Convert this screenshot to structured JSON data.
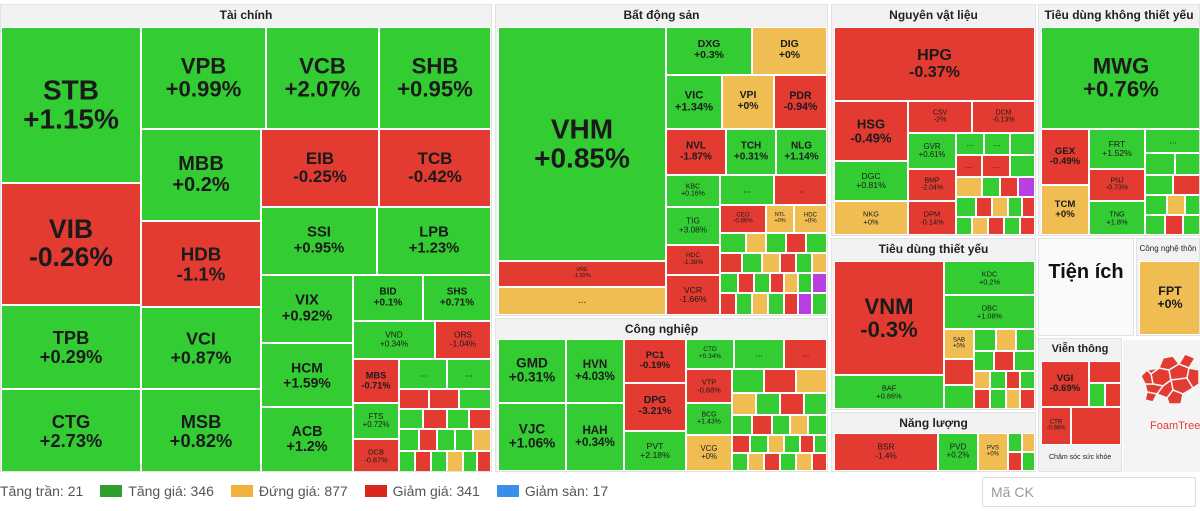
{
  "sectors": [
    {
      "name": "Tài chính",
      "tiles": [
        {
          "symbol": "STB",
          "change": "+1.15%",
          "status": "up"
        },
        {
          "symbol": "VIB",
          "change": "-0.26%",
          "status": "down"
        },
        {
          "symbol": "TPB",
          "change": "+0.29%",
          "status": "up"
        },
        {
          "symbol": "CTG",
          "change": "+2.73%",
          "status": "up"
        },
        {
          "symbol": "VPB",
          "change": "+0.99%",
          "status": "up"
        },
        {
          "symbol": "VCB",
          "change": "+2.07%",
          "status": "up"
        },
        {
          "symbol": "SHB",
          "change": "+0.95%",
          "status": "up"
        },
        {
          "symbol": "MBB",
          "change": "+0.2%",
          "status": "up"
        },
        {
          "symbol": "EIB",
          "change": "-0.25%",
          "status": "down"
        },
        {
          "symbol": "TCB",
          "change": "-0.42%",
          "status": "down"
        },
        {
          "symbol": "HDB",
          "change": "-1.1%",
          "status": "down"
        },
        {
          "symbol": "SSI",
          "change": "+0.95%",
          "status": "up"
        },
        {
          "symbol": "LPB",
          "change": "+1.23%",
          "status": "up"
        },
        {
          "symbol": "VCI",
          "change": "+0.87%",
          "status": "up"
        },
        {
          "symbol": "VIX",
          "change": "+0.92%",
          "status": "up"
        },
        {
          "symbol": "BID",
          "change": "+0.1%",
          "status": "up"
        },
        {
          "symbol": "SHS",
          "change": "+0.71%",
          "status": "up"
        },
        {
          "symbol": "VND",
          "change": "+0.34%",
          "status": "up"
        },
        {
          "symbol": "ORS",
          "change": "-1.04%",
          "status": "down"
        },
        {
          "symbol": "MSB",
          "change": "+0.82%",
          "status": "up"
        },
        {
          "symbol": "HCM",
          "change": "+1.59%",
          "status": "up"
        },
        {
          "symbol": "MBS",
          "change": "-0.71%",
          "status": "down"
        },
        {
          "symbol": "FTS",
          "change": "+0.72%",
          "status": "up"
        },
        {
          "symbol": "ACB",
          "change": "+1.2%",
          "status": "up"
        },
        {
          "symbol": "OCB",
          "change": "-0.87%",
          "status": "down"
        }
      ]
    },
    {
      "name": "Bất động sản",
      "tiles": [
        {
          "symbol": "VHM",
          "change": "+0.85%",
          "status": "up"
        },
        {
          "symbol": "VRE",
          "change": "-1.92%",
          "status": "down"
        },
        {
          "symbol": "DXG",
          "change": "+0.3%",
          "status": "up"
        },
        {
          "symbol": "DIG",
          "change": "+0%",
          "status": "ref"
        },
        {
          "symbol": "VIC",
          "change": "+1.34%",
          "status": "up"
        },
        {
          "symbol": "VPI",
          "change": "+0%",
          "status": "ref"
        },
        {
          "symbol": "PDR",
          "change": "-0.94%",
          "status": "down"
        },
        {
          "symbol": "NVL",
          "change": "-1.87%",
          "status": "down"
        },
        {
          "symbol": "TCH",
          "change": "+0.31%",
          "status": "up"
        },
        {
          "symbol": "NLG",
          "change": "+1.14%",
          "status": "up"
        },
        {
          "symbol": "KBC",
          "change": "+0.16%",
          "status": "up"
        },
        {
          "symbol": "TIG",
          "change": "+3.08%",
          "status": "up"
        },
        {
          "symbol": "CEO",
          "change": "-0.86%",
          "status": "down"
        },
        {
          "symbol": "NTL",
          "change": "+0%",
          "status": "ref"
        },
        {
          "symbol": "HDC",
          "change": "+0%",
          "status": "ref"
        },
        {
          "symbol": "HDC",
          "change": "-1.38%",
          "status": "down"
        },
        {
          "symbol": "VCR",
          "change": "-1.66%",
          "status": "down"
        }
      ]
    },
    {
      "name": "Nguyên vật liệu",
      "tiles": [
        {
          "symbol": "HPG",
          "change": "-0.37%",
          "status": "down"
        },
        {
          "symbol": "HSG",
          "change": "-0.49%",
          "status": "down"
        },
        {
          "symbol": "CSV",
          "change": "-2%",
          "status": "down"
        },
        {
          "symbol": "DCM",
          "change": "-0.13%",
          "status": "down"
        },
        {
          "symbol": "GVR",
          "change": "+0.61%",
          "status": "up"
        },
        {
          "symbol": "DGC",
          "change": "+0.81%",
          "status": "up"
        },
        {
          "symbol": "BMP",
          "change": "-2.04%",
          "status": "down"
        },
        {
          "symbol": "NKG",
          "change": "+0%",
          "status": "ref"
        },
        {
          "symbol": "DPM",
          "change": "-0.14%",
          "status": "down"
        }
      ]
    },
    {
      "name": "Tiêu dùng không thiết yếu",
      "tiles": [
        {
          "symbol": "MWG",
          "change": "+0.76%",
          "status": "up"
        },
        {
          "symbol": "GEX",
          "change": "-0.49%",
          "status": "down"
        },
        {
          "symbol": "FRT",
          "change": "+1.52%",
          "status": "up"
        },
        {
          "symbol": "PNJ",
          "change": "-0.73%",
          "status": "down"
        },
        {
          "symbol": "TCM",
          "change": "+0%",
          "status": "ref"
        },
        {
          "symbol": "TNG",
          "change": "+1.8%",
          "status": "up"
        }
      ]
    },
    {
      "name": "Công nghiệp",
      "tiles": [
        {
          "symbol": "GMD",
          "change": "+0.31%",
          "status": "up"
        },
        {
          "symbol": "HVN",
          "change": "+4.03%",
          "status": "up"
        },
        {
          "symbol": "PC1",
          "change": "-0.19%",
          "status": "down"
        },
        {
          "symbol": "CTD",
          "change": "+0.34%",
          "status": "up"
        },
        {
          "symbol": "VJC",
          "change": "+1.06%",
          "status": "up"
        },
        {
          "symbol": "HAH",
          "change": "+0.34%",
          "status": "up"
        },
        {
          "symbol": "DPG",
          "change": "-3.21%",
          "status": "down"
        },
        {
          "symbol": "VTP",
          "change": "-0.88%",
          "status": "down"
        },
        {
          "symbol": "BCG",
          "change": "+1.43%",
          "status": "up"
        },
        {
          "symbol": "PVT",
          "change": "+2.18%",
          "status": "up"
        },
        {
          "symbol": "VCG",
          "change": "+0%",
          "status": "ref"
        }
      ]
    },
    {
      "name": "Tiêu dùng thiết yếu",
      "tiles": [
        {
          "symbol": "VNM",
          "change": "-0.3%",
          "status": "down"
        },
        {
          "symbol": "KDC",
          "change": "+0.2%",
          "status": "up"
        },
        {
          "symbol": "DBC",
          "change": "+1.08%",
          "status": "up"
        },
        {
          "symbol": "SAB",
          "change": "+0%",
          "status": "ref"
        },
        {
          "symbol": "BAF",
          "change": "+0.86%",
          "status": "up"
        }
      ]
    },
    {
      "name": "Năng lượng",
      "tiles": [
        {
          "symbol": "BSR",
          "change": "-1.4%",
          "status": "down"
        },
        {
          "symbol": "PVD",
          "change": "+0.2%",
          "status": "up"
        },
        {
          "symbol": "PVS",
          "change": "+0%",
          "status": "ref"
        }
      ]
    },
    {
      "name": "Công nghệ thôn",
      "tiles": [
        {
          "symbol": "FPT",
          "change": "+0%",
          "status": "ref"
        }
      ]
    },
    {
      "name": "Viễn thông",
      "tiles": [
        {
          "symbol": "VGI",
          "change": "-0.69%",
          "status": "down"
        },
        {
          "symbol": "CTR",
          "change": "-0.98%",
          "status": "down"
        }
      ]
    }
  ],
  "utilities_label": "Tiện ích",
  "consumer_note": "Chăm sóc sức khỏe",
  "more_label": "...",
  "brand": "FoamTree",
  "legend": [
    {
      "label": "Tăng trần: 21",
      "color": "#b93fe0"
    },
    {
      "label": "Tăng giá: 346",
      "color": "#2f9e2f"
    },
    {
      "label": "Đứng giá: 877",
      "color": "#f0b23c"
    },
    {
      "label": "Giảm giá: 341",
      "color": "#d8261d"
    },
    {
      "label": "Giảm sàn: 17",
      "color": "#3b8ee8"
    }
  ],
  "search": {
    "placeholder": "Mã CK"
  },
  "colors": {
    "up": "#33cc33",
    "down": "#e33b32",
    "ref": "#f0bd52",
    "ceil": "#b93fe0",
    "floor": "#37a6df"
  }
}
